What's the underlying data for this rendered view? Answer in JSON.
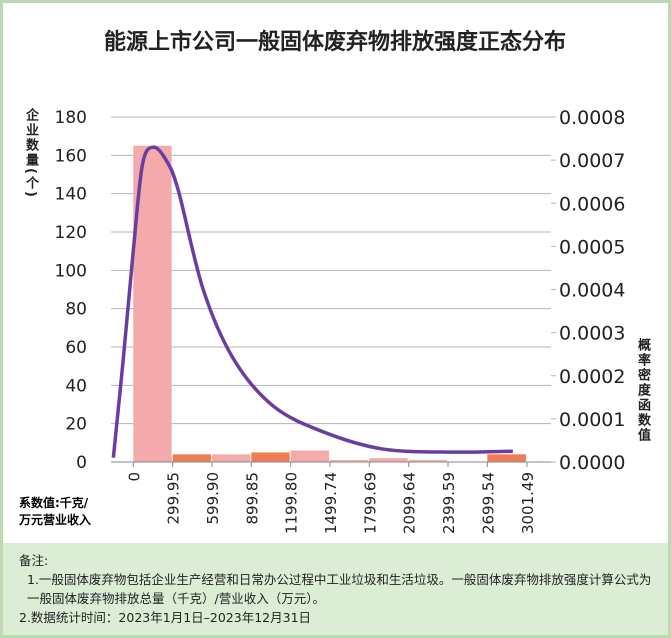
{
  "chart_data": {
    "type": "histogram",
    "title": "能源上市公司一般固体废弃物排放强度正态分布",
    "y_label": "企业数量(个)",
    "y2_label": "概率密度函数值",
    "x_label": [
      "系数值:千克/",
      "万元营业收入"
    ],
    "bins": [
      0,
      299.95,
      599.9,
      899.85,
      1199.8,
      1499.74,
      1799.69,
      2099.64,
      2399.59,
      2699.54,
      3001.49
    ],
    "counts": [
      165,
      4,
      4,
      5,
      6,
      1,
      2,
      1,
      0,
      4
    ],
    "colors": [
      "#f4aaab",
      "#ee7c55",
      "#f4aaab",
      "#ee7c55",
      "#f4aaab",
      "#f4aaab",
      "#f4aaab",
      "#f4aaab",
      "#f4aaab",
      "#ee7c55"
    ],
    "xticks": [
      0,
      299.95,
      {
        "value": 599.9,
        "label": "599.90"
      },
      899.85,
      {
        "value": 1199.8,
        "label": "1199.80"
      },
      1499.74,
      1799.69,
      2099.64,
      2399.59,
      2699.54,
      3001.49
    ],
    "xlim": [
      -170,
      3185
    ],
    "ylim": [
      0,
      180
    ],
    "yticks": [
      0,
      20,
      40,
      60,
      80,
      100,
      120,
      140,
      160,
      180
    ],
    "y2lim": [
      0,
      0.0008
    ],
    "y2ticks": [
      {
        "value": 0,
        "label": "0.0000"
      },
      {
        "value": 0.0001,
        "label": "0.0001"
      },
      {
        "value": 0.0002,
        "label": "0.0002"
      },
      {
        "value": 0.0003,
        "label": "0.0003"
      },
      {
        "value": 0.0004,
        "label": "0.0004"
      },
      {
        "value": 0.0005,
        "label": "0.0005"
      },
      {
        "value": 0.0006,
        "label": "0.0006"
      },
      {
        "value": 0.0007,
        "label": "0.0007"
      },
      {
        "value": 0.0008,
        "label": "0.0008"
      }
    ],
    "grid": true,
    "density": {
      "color": "#6a3ea1",
      "axis": "y2",
      "x": [
        -152,
        -76,
        0,
        70,
        152,
        250,
        343,
        533,
        762,
        1066,
        1447,
        1904,
        2437,
        2894
      ],
      "values": [
        1e-05,
        0.00024,
        0.00049,
        0.00069,
        0.00073,
        0.0007,
        0.00063,
        0.0004,
        0.00024,
        0.00013,
        7e-05,
        3e-05,
        2.3e-05,
        2.5e-05
      ]
    }
  },
  "notes": {
    "heading": "备注:",
    "items": [
      "1.一般固体废弃物包括企业生产经营和日常办公过程中工业垃圾和生活垃圾。一般固体废弃物排放强度计算公式为一般固体废弃物排放总量（千克）/营业收入（万元）。",
      "2.数据统计时间：2023年1月1日–2023年12月31日"
    ]
  }
}
